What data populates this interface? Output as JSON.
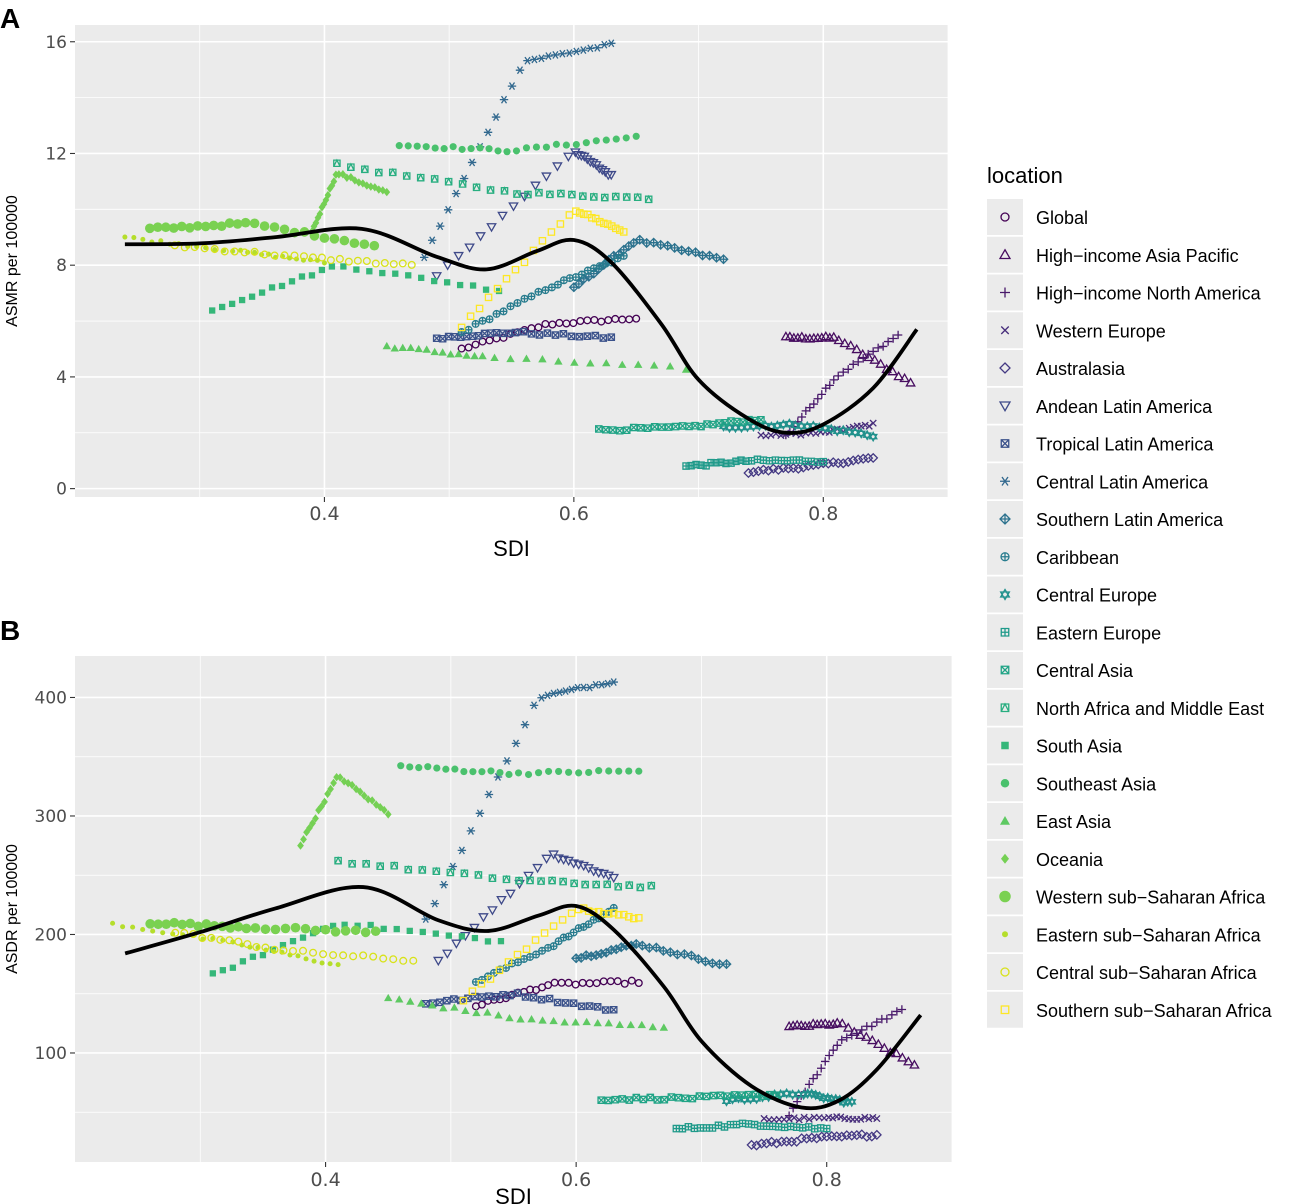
{
  "legend": {
    "title": "location",
    "entries": [
      {
        "name": "Global",
        "color": "#440154",
        "shape": "circle-open"
      },
      {
        "name": "High−income Asia Pacific",
        "color": "#470d60",
        "shape": "triangle-open"
      },
      {
        "name": "High−income North America",
        "color": "#48186a",
        "shape": "plus"
      },
      {
        "name": "Western Europe",
        "color": "#472d7b",
        "shape": "cross"
      },
      {
        "name": "Australasia",
        "color": "#443983",
        "shape": "diamond-open"
      },
      {
        "name": "Andean Latin America",
        "color": "#3e4989",
        "shape": "triangle-down-open"
      },
      {
        "name": "Tropical Latin America",
        "color": "#3b528b",
        "shape": "square-cross"
      },
      {
        "name": "Central Latin America",
        "color": "#31688e",
        "shape": "asterisk"
      },
      {
        "name": "Southern Latin America",
        "color": "#2c728e",
        "shape": "diamond-plus"
      },
      {
        "name": "Caribbean",
        "color": "#287c8e",
        "shape": "circle-plus"
      },
      {
        "name": "Central Europe",
        "color": "#21918c",
        "shape": "star-david"
      },
      {
        "name": "Eastern Europe",
        "color": "#1f9a8a",
        "shape": "square-plus"
      },
      {
        "name": "Central Asia",
        "color": "#20a486",
        "shape": "square-x"
      },
      {
        "name": "North Africa and Middle East",
        "color": "#28ae80",
        "shape": "square-triangle"
      },
      {
        "name": "South Asia",
        "color": "#35b779",
        "shape": "square"
      },
      {
        "name": "Southeast Asia",
        "color": "#4ac16d",
        "shape": "circle"
      },
      {
        "name": "East Asia",
        "color": "#5ec962",
        "shape": "triangle"
      },
      {
        "name": "Oceania",
        "color": "#75d054",
        "shape": "diamond"
      },
      {
        "name": "Western sub−Saharan Africa",
        "color": "#7ad151",
        "shape": "circle-big"
      },
      {
        "name": "Eastern sub−Saharan Africa",
        "color": "#b5de2b",
        "shape": "circle-small"
      },
      {
        "name": "Central sub−Saharan Africa",
        "color": "#d8e219",
        "shape": "circle-open"
      },
      {
        "name": "Southern sub−Saharan Africa",
        "color": "#fde725",
        "shape": "square-open"
      }
    ]
  },
  "chart_data": [
    {
      "panel_label": "A",
      "type": "scatter",
      "xlabel": "SDI",
      "ylabel": "ASMR per 100000",
      "xlim": [
        0.2,
        0.9
      ],
      "ylim": [
        -0.3,
        16.6
      ],
      "x_ticks": [
        0.4,
        0.6,
        0.8
      ],
      "x_tick_labels": [
        "0.4",
        "0.6",
        "0.8"
      ],
      "y_ticks": [
        0,
        4,
        8,
        12,
        16
      ],
      "y_tick_labels": [
        "0",
        "4",
        "8",
        "12",
        "16"
      ],
      "series": [
        {
          "name": "Global",
          "x": [
            0.51,
            0.58,
            0.65
          ],
          "y": [
            5.0,
            5.9,
            6.1
          ]
        },
        {
          "name": "High−income Asia Pacific",
          "x": [
            0.77,
            0.81,
            0.87
          ],
          "y": [
            5.4,
            5.4,
            3.8
          ]
        },
        {
          "name": "High−income North America",
          "x": [
            0.77,
            0.81,
            0.86
          ],
          "y": [
            1.9,
            4.0,
            5.5
          ]
        },
        {
          "name": "Western Europe",
          "x": [
            0.75,
            0.8,
            0.84
          ],
          "y": [
            1.9,
            2.0,
            2.3
          ]
        },
        {
          "name": "Australasia",
          "x": [
            0.74,
            0.79,
            0.84
          ],
          "y": [
            0.6,
            0.8,
            1.1
          ]
        },
        {
          "name": "Andean Latin America",
          "x": [
            0.49,
            0.6,
            0.63
          ],
          "y": [
            7.6,
            12.1,
            11.2
          ]
        },
        {
          "name": "Tropical Latin America",
          "x": [
            0.49,
            0.55,
            0.63
          ],
          "y": [
            5.4,
            5.6,
            5.4
          ]
        },
        {
          "name": "Central Latin America",
          "x": [
            0.48,
            0.56,
            0.63
          ],
          "y": [
            8.3,
            15.3,
            15.9
          ]
        },
        {
          "name": "Southern Latin America",
          "x": [
            0.6,
            0.65,
            0.72
          ],
          "y": [
            7.2,
            8.9,
            8.2
          ]
        },
        {
          "name": "Caribbean",
          "x": [
            0.51,
            0.58,
            0.64
          ],
          "y": [
            5.6,
            7.2,
            8.3
          ]
        },
        {
          "name": "Central Europe",
          "x": [
            0.72,
            0.78,
            0.84
          ],
          "y": [
            2.2,
            2.3,
            1.9
          ]
        },
        {
          "name": "Eastern Europe",
          "x": [
            0.69,
            0.74,
            0.8
          ],
          "y": [
            0.8,
            1.0,
            1.0
          ]
        },
        {
          "name": "Central Asia",
          "x": [
            0.62,
            0.69,
            0.75
          ],
          "y": [
            2.1,
            2.2,
            2.5
          ]
        },
        {
          "name": "North Africa and Middle East",
          "x": [
            0.41,
            0.55,
            0.66
          ],
          "y": [
            11.6,
            10.6,
            10.4
          ]
        },
        {
          "name": "South Asia",
          "x": [
            0.31,
            0.41,
            0.54
          ],
          "y": [
            6.4,
            8.0,
            7.1
          ]
        },
        {
          "name": "Southeast Asia",
          "x": [
            0.46,
            0.55,
            0.65
          ],
          "y": [
            12.3,
            12.1,
            12.6
          ]
        },
        {
          "name": "East Asia",
          "x": [
            0.45,
            0.53,
            0.69
          ],
          "y": [
            5.1,
            4.7,
            4.3
          ]
        },
        {
          "name": "Oceania",
          "x": [
            0.39,
            0.41,
            0.45
          ],
          "y": [
            9.2,
            11.3,
            10.6
          ]
        },
        {
          "name": "Western sub−Saharan Africa",
          "x": [
            0.26,
            0.34,
            0.44
          ],
          "y": [
            9.3,
            9.5,
            8.7
          ]
        },
        {
          "name": "Eastern sub−Saharan Africa",
          "x": [
            0.24,
            0.33,
            0.4
          ],
          "y": [
            9.0,
            8.5,
            8.1
          ]
        },
        {
          "name": "Central sub−Saharan Africa",
          "x": [
            0.28,
            0.38,
            0.47
          ],
          "y": [
            8.7,
            8.3,
            8.0
          ]
        },
        {
          "name": "Southern sub−Saharan Africa",
          "x": [
            0.51,
            0.6,
            0.64
          ],
          "y": [
            5.8,
            10.0,
            9.2
          ]
        }
      ],
      "trend": {
        "x": [
          0.24,
          0.3,
          0.36,
          0.43,
          0.49,
          0.53,
          0.57,
          0.6,
          0.63,
          0.67,
          0.7,
          0.74,
          0.77,
          0.8,
          0.84,
          0.875
        ],
        "y": [
          8.75,
          8.78,
          9.0,
          9.3,
          8.3,
          7.85,
          8.5,
          8.9,
          8.1,
          5.9,
          3.9,
          2.5,
          2.0,
          2.3,
          3.6,
          5.7
        ]
      }
    },
    {
      "panel_label": "B",
      "type": "scatter",
      "xlabel": "SDI",
      "ylabel": "ASDR per 100000",
      "xlim": [
        0.2,
        0.9
      ],
      "ylim": [
        8,
        435
      ],
      "x_ticks": [
        0.4,
        0.6,
        0.8
      ],
      "x_tick_labels": [
        "0.4",
        "0.6",
        "0.8"
      ],
      "y_ticks": [
        100,
        200,
        300,
        400
      ],
      "y_tick_labels": [
        "100",
        "200",
        "300",
        "400"
      ],
      "series": [
        {
          "name": "Global",
          "x": [
            0.52,
            0.58,
            0.65
          ],
          "y": [
            140,
            158,
            160
          ]
        },
        {
          "name": "High−income Asia Pacific",
          "x": [
            0.77,
            0.81,
            0.87
          ],
          "y": [
            122,
            125,
            90
          ]
        },
        {
          "name": "High−income North America",
          "x": [
            0.77,
            0.81,
            0.86
          ],
          "y": [
            48,
            110,
            136
          ]
        },
        {
          "name": "Western Europe",
          "x": [
            0.75,
            0.8,
            0.84
          ],
          "y": [
            44,
            45,
            45
          ]
        },
        {
          "name": "Australasia",
          "x": [
            0.74,
            0.79,
            0.84
          ],
          "y": [
            22,
            28,
            31
          ]
        },
        {
          "name": "Andean Latin America",
          "x": [
            0.49,
            0.58,
            0.63
          ],
          "y": [
            178,
            268,
            248
          ]
        },
        {
          "name": "Tropical Latin America",
          "x": [
            0.48,
            0.55,
            0.63
          ],
          "y": [
            142,
            150,
            136
          ]
        },
        {
          "name": "Central Latin America",
          "x": [
            0.48,
            0.57,
            0.63
          ],
          "y": [
            212,
            400,
            414
          ]
        },
        {
          "name": "Southern Latin America",
          "x": [
            0.6,
            0.65,
            0.72
          ],
          "y": [
            180,
            192,
            174
          ]
        },
        {
          "name": "Caribbean",
          "x": [
            0.52,
            0.58,
            0.63
          ],
          "y": [
            160,
            190,
            222
          ]
        },
        {
          "name": "Central Europe",
          "x": [
            0.72,
            0.78,
            0.82
          ],
          "y": [
            60,
            66,
            58
          ]
        },
        {
          "name": "Eastern Europe",
          "x": [
            0.68,
            0.74,
            0.8
          ],
          "y": [
            36,
            40,
            36
          ]
        },
        {
          "name": "Central Asia",
          "x": [
            0.62,
            0.69,
            0.76
          ],
          "y": [
            61,
            62,
            65
          ]
        },
        {
          "name": "North Africa and Middle East",
          "x": [
            0.41,
            0.55,
            0.66
          ],
          "y": [
            262,
            246,
            240
          ]
        },
        {
          "name": "South Asia",
          "x": [
            0.31,
            0.41,
            0.54
          ],
          "y": [
            166,
            210,
            194
          ]
        },
        {
          "name": "Southeast Asia",
          "x": [
            0.46,
            0.55,
            0.65
          ],
          "y": [
            342,
            336,
            338
          ]
        },
        {
          "name": "East Asia",
          "x": [
            0.45,
            0.56,
            0.67
          ],
          "y": [
            146,
            128,
            122
          ]
        },
        {
          "name": "Oceania",
          "x": [
            0.38,
            0.41,
            0.45
          ],
          "y": [
            276,
            334,
            302
          ]
        },
        {
          "name": "Western sub−Saharan Africa",
          "x": [
            0.26,
            0.34,
            0.44
          ],
          "y": [
            210,
            206,
            202
          ]
        },
        {
          "name": "Eastern sub−Saharan Africa",
          "x": [
            0.23,
            0.33,
            0.41
          ],
          "y": [
            209,
            192,
            174
          ]
        },
        {
          "name": "Central sub−Saharan Africa",
          "x": [
            0.28,
            0.37,
            0.47
          ],
          "y": [
            202,
            186,
            178
          ]
        },
        {
          "name": "Southern sub−Saharan Africa",
          "x": [
            0.51,
            0.6,
            0.65
          ],
          "y": [
            145,
            222,
            214
          ]
        }
      ],
      "trend": {
        "x": [
          0.24,
          0.3,
          0.36,
          0.43,
          0.49,
          0.53,
          0.57,
          0.6,
          0.63,
          0.67,
          0.7,
          0.74,
          0.78,
          0.81,
          0.84,
          0.875
        ],
        "y": [
          184,
          202,
          222,
          240,
          212,
          203,
          216,
          224,
          204,
          156,
          110,
          72,
          54,
          60,
          86,
          132
        ]
      }
    }
  ]
}
